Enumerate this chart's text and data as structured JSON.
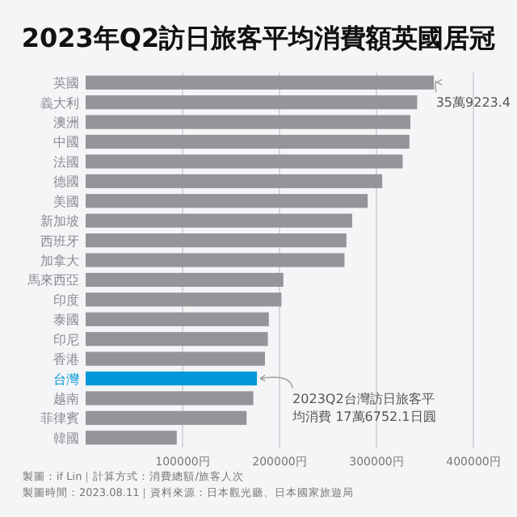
{
  "chart_data": {
    "type": "bar",
    "orientation": "horizontal",
    "title": "2023年Q2訪日旅客平均消費額英國居冠",
    "categories": [
      "英國",
      "義大利",
      "澳洲",
      "中國",
      "法國",
      "德國",
      "美國",
      "新加坡",
      "西班牙",
      "加拿大",
      "馬來西亞",
      "印度",
      "泰國",
      "印尼",
      "香港",
      "台灣",
      "越南",
      "菲律賓",
      "韓國"
    ],
    "values": [
      359223.4,
      342000,
      335000,
      334000,
      327000,
      306000,
      291000,
      275000,
      269000,
      267000,
      204000,
      202000,
      189000,
      188000,
      185000,
      176752.1,
      173000,
      166000,
      94000
    ],
    "colors": [
      "#939598",
      "#939598",
      "#939598",
      "#939598",
      "#939598",
      "#939598",
      "#939598",
      "#939598",
      "#939598",
      "#939598",
      "#939598",
      "#939598",
      "#939598",
      "#939598",
      "#939598",
      "#0098d8",
      "#939598",
      "#939598",
      "#939598"
    ],
    "xlim": [
      0,
      400000
    ],
    "xticks": [
      {
        "value": 100000,
        "label": "100000円"
      },
      {
        "value": 200000,
        "label": "200000円"
      },
      {
        "value": 300000,
        "label": "300000円"
      },
      {
        "value": 400000,
        "label": "400000円"
      }
    ],
    "grid": "x",
    "annotations": [
      {
        "text": "35萬9223.4",
        "x": 359223.4,
        "y": "英國"
      },
      {
        "text": "2023Q2台灣訪日旅客平均消費 17萬6752.1日圓",
        "x": 176752.1,
        "y": "台灣"
      },
      "製圖：if Lin｜計算方式：消費總額/旅客人次",
      "製圖時間：2023.08.11｜資料來源：日本觀光廳、日本國家旅遊局"
    ]
  }
}
